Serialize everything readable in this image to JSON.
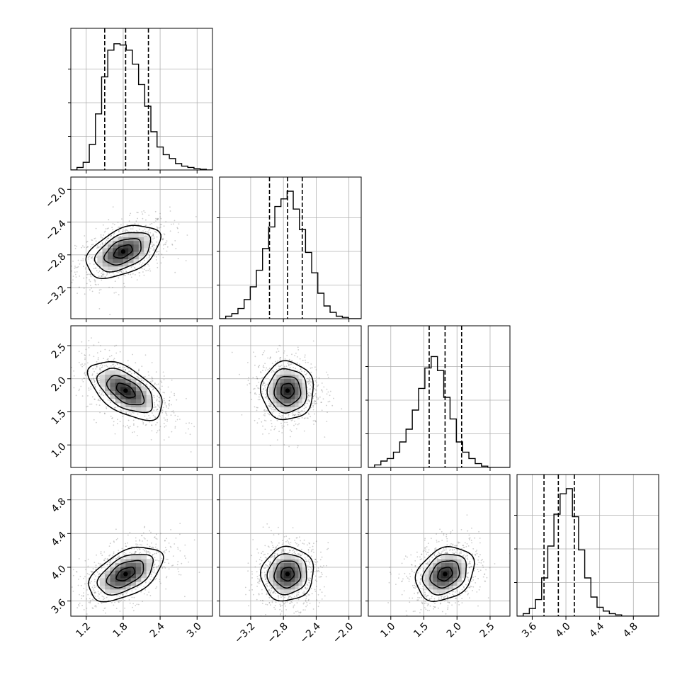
{
  "chart_data": {
    "type": "corner",
    "grid": true,
    "parameters": [
      {
        "ticks": [
          1.2,
          1.8,
          2.4,
          3.0
        ],
        "tick_labels": [
          "1.2",
          "1.8",
          "2.4",
          "3.0"
        ],
        "range": [
          0.95,
          3.25
        ]
      },
      {
        "ticks": [
          -3.2,
          -2.8,
          -2.4,
          -2.0
        ],
        "tick_labels": [
          "−3.2",
          "−2.8",
          "−2.4",
          "−2.0"
        ],
        "range": [
          -3.58,
          -1.85
        ]
      },
      {
        "ticks": [
          1.0,
          1.5,
          2.0,
          2.5
        ],
        "tick_labels": [
          "1.0",
          "1.5",
          "2.0",
          "2.5"
        ],
        "range": [
          0.66,
          2.8
        ]
      },
      {
        "ticks": [
          3.6,
          4.0,
          4.4,
          4.8
        ],
        "tick_labels": [
          "3.6",
          "4.0",
          "4.4",
          "4.8"
        ],
        "range": [
          3.42,
          5.1
        ]
      }
    ],
    "histograms": [
      {
        "edges_start": 0.95,
        "bin_width": 0.1,
        "counts": [
          0,
          0.02,
          0.06,
          0.2,
          0.44,
          0.73,
          0.94,
          0.99,
          0.98,
          0.94,
          0.83,
          0.67,
          0.5,
          0.3,
          0.18,
          0.12,
          0.09,
          0.05,
          0.03,
          0.02,
          0.01,
          0.005,
          0
        ],
        "quantiles": [
          1.5,
          1.84,
          2.21
        ]
      },
      {
        "edges_start": -3.58,
        "bin_width": 0.075,
        "counts": [
          0,
          0.02,
          0.04,
          0.08,
          0.15,
          0.25,
          0.38,
          0.55,
          0.72,
          0.88,
          0.94,
          1.0,
          0.86,
          0.7,
          0.52,
          0.36,
          0.2,
          0.1,
          0.05,
          0.02,
          0.01,
          0
        ],
        "quantiles": [
          -2.97,
          -2.75,
          -2.57
        ]
      },
      {
        "edges_start": 0.66,
        "bin_width": 0.095,
        "counts": [
          0,
          0.02,
          0.05,
          0.07,
          0.12,
          0.2,
          0.3,
          0.45,
          0.62,
          0.78,
          0.87,
          0.76,
          0.55,
          0.38,
          0.2,
          0.12,
          0.07,
          0.03,
          0.01,
          0
        ],
        "quantiles": [
          1.58,
          1.82,
          2.07
        ]
      },
      {
        "edges_start": 3.42,
        "bin_width": 0.073,
        "counts": [
          0,
          0.02,
          0.06,
          0.13,
          0.3,
          0.55,
          0.8,
          0.96,
          1.0,
          0.78,
          0.52,
          0.3,
          0.15,
          0.07,
          0.04,
          0.02,
          0.01,
          0,
          0,
          0,
          0,
          0,
          0
        ],
        "quantiles": [
          3.74,
          3.91,
          4.1
        ]
      }
    ],
    "pairs": [
      {
        "row": 1,
        "col": 0,
        "center": [
          1.8,
          -2.76
        ],
        "std": [
          0.3,
          0.16
        ],
        "rho": 0.45
      },
      {
        "row": 2,
        "col": 0,
        "center": [
          1.84,
          1.82
        ],
        "std": [
          0.3,
          0.22
        ],
        "rho": -0.55
      },
      {
        "row": 2,
        "col": 1,
        "center": [
          -2.75,
          1.82
        ],
        "std": [
          0.16,
          0.22
        ],
        "rho": 0.0
      },
      {
        "row": 3,
        "col": 0,
        "center": [
          1.84,
          3.92
        ],
        "std": [
          0.3,
          0.16
        ],
        "rho": 0.5
      },
      {
        "row": 3,
        "col": 1,
        "center": [
          -2.75,
          3.92
        ],
        "std": [
          0.16,
          0.16
        ],
        "rho": 0.05
      },
      {
        "row": 3,
        "col": 2,
        "center": [
          1.82,
          3.92
        ],
        "std": [
          0.22,
          0.16
        ],
        "rho": 0.25
      }
    ],
    "contour_levels": [
      0.5,
      1.0,
      1.5,
      2.0
    ]
  }
}
